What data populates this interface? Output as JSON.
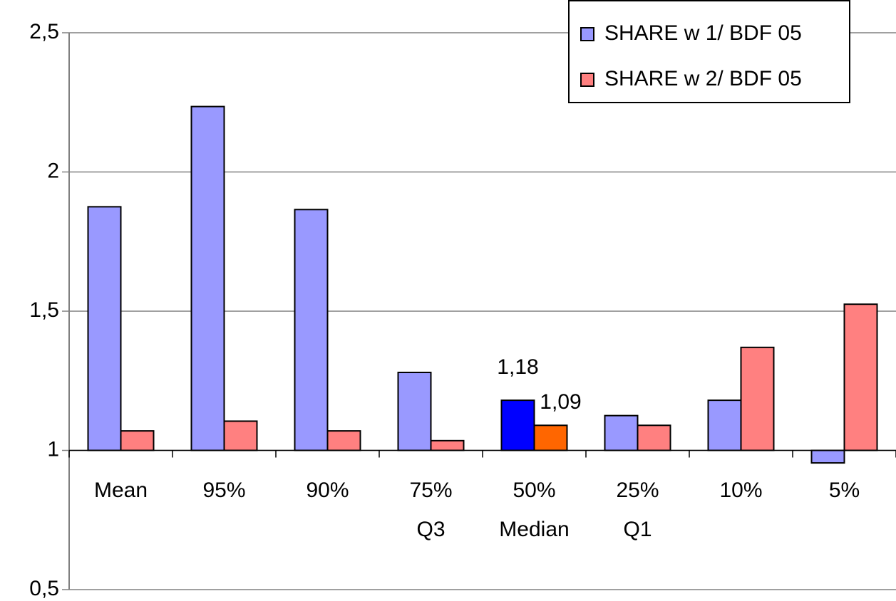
{
  "chart_data": {
    "type": "bar",
    "categories": [
      "Mean",
      "95%",
      "90%",
      [
        "75%",
        "Q3"
      ],
      [
        "50%",
        "Median"
      ],
      [
        "25%",
        "Q1"
      ],
      "10%",
      "5%"
    ],
    "series": [
      {
        "name": "SHARE w 1/ BDF 05",
        "color": "#9999ff",
        "values": [
          1.875,
          2.235,
          1.865,
          1.28,
          1.18,
          1.125,
          1.18,
          0.955
        ],
        "value_labels": [
          null,
          null,
          null,
          null,
          "1,18",
          null,
          null,
          null
        ]
      },
      {
        "name": "SHARE w 2/ BDF 05",
        "color": "#ff8080",
        "values": [
          1.07,
          1.105,
          1.07,
          1.035,
          1.09,
          1.09,
          1.37,
          1.525
        ],
        "value_labels": [
          null,
          null,
          null,
          null,
          "1,09",
          null,
          null,
          null
        ]
      }
    ],
    "highlight": {
      "index": 4,
      "colors": [
        "#0000ff",
        "#ff6600"
      ]
    },
    "baseline": 1,
    "ylim": [
      0.5,
      2.5
    ],
    "yticks": [
      {
        "value": 0.5,
        "label": "0,5"
      },
      1,
      {
        "value": 1.5,
        "label": "1,5"
      },
      2,
      {
        "value": 2.5,
        "label": "2,5"
      }
    ],
    "grid": true,
    "legend": "top-right"
  }
}
